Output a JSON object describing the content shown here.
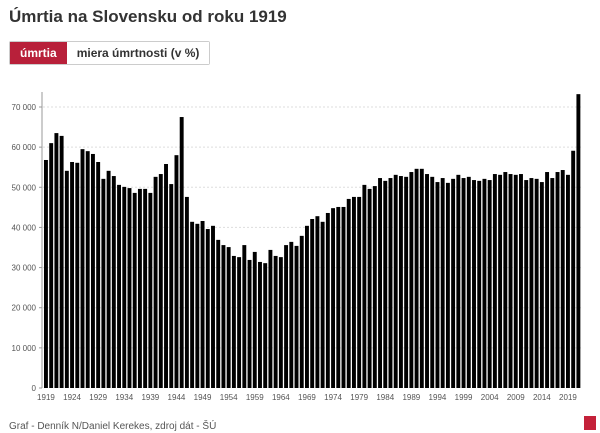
{
  "header": {
    "title": "Úmrtia na Slovensku od roku 1919"
  },
  "tabs": [
    {
      "label": "úmrtia",
      "active": true
    },
    {
      "label": "miera úmrtnosti (v %)",
      "active": false
    }
  ],
  "footer": {
    "credit": "Graf - Denník N/Daniel Kerekes, zdroj dát - ŠÚ",
    "logo": "N"
  },
  "colors": {
    "bar": "#000000",
    "accent": "#b8203a"
  },
  "chart_data": {
    "type": "bar",
    "title": "Úmrtia na Slovensku od roku 1919",
    "xlabel": "",
    "ylabel": "",
    "ylim": [
      0,
      75000
    ],
    "grid": true,
    "yticks": [
      0,
      10000,
      20000,
      30000,
      40000,
      50000,
      60000,
      70000
    ],
    "ytick_labels": [
      "0",
      "10 000",
      "20 000",
      "30 000",
      "40 000",
      "50 000",
      "60 000",
      "70 000"
    ],
    "xtick_labels": [
      "1919",
      "1924",
      "1929",
      "1934",
      "1939",
      "1944",
      "1949",
      "1954",
      "1959",
      "1964",
      "1969",
      "1974",
      "1979",
      "1984",
      "1989",
      "1994",
      "1999",
      "2004",
      "2009",
      "2014",
      "2019"
    ],
    "first_year": 1919,
    "values": [
      56800,
      61000,
      63500,
      62800,
      54100,
      56300,
      56100,
      59500,
      59000,
      58300,
      56300,
      52100,
      54100,
      52800,
      50600,
      50100,
      49800,
      48600,
      49600,
      49600,
      48600,
      52600,
      53300,
      55800,
      50800,
      58000,
      67500,
      47600,
      41400,
      40900,
      41600,
      39600,
      40400,
      36900,
      35600,
      35100,
      32900,
      32600,
      35600,
      31900,
      33900,
      31400,
      31100,
      34400,
      32900,
      32600,
      35600,
      36400,
      35400,
      37900,
      40400,
      42100,
      42800,
      41400,
      43600,
      44800,
      45100,
      45100,
      47100,
      47600,
      47600,
      50600,
      49600,
      50300,
      52300,
      51600,
      52300,
      53100,
      52800,
      52600,
      53800,
      54600,
      54600,
      53300,
      52600,
      51300,
      52300,
      51100,
      52100,
      53100,
      52300,
      52600,
      51800,
      51600,
      52100,
      51800,
      53300,
      53100,
      53800,
      53300,
      53100,
      53300,
      51800,
      52300,
      52100,
      51300,
      53800,
      52300,
      53800,
      54300,
      53100,
      59100,
      73200
    ]
  }
}
